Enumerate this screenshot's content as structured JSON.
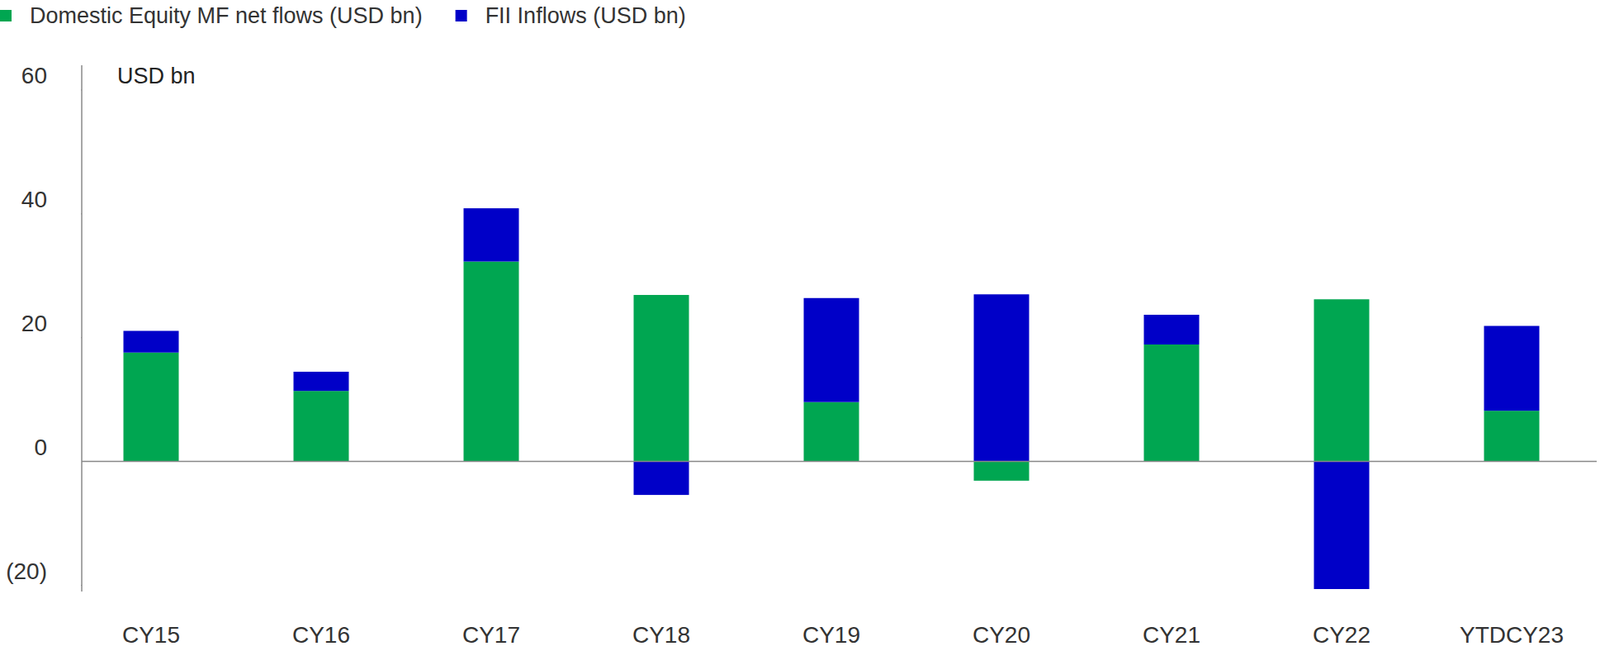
{
  "chart_data": {
    "type": "bar",
    "stacked": true,
    "y_label": "USD bn",
    "categories": [
      "CY15",
      "CY16",
      "CY17",
      "CY18",
      "CY19",
      "CY20",
      "CY21",
      "CY22",
      "YTDCY23"
    ],
    "series": [
      {
        "name": "Domestic Equity MF net flows (USD bn)",
        "color": "#00a651",
        "values": [
          17.6,
          11.4,
          32.3,
          26.9,
          9.6,
          -3.1,
          18.9,
          26.2,
          8.2
        ]
      },
      {
        "name": "FII Inflows (USD bn)",
        "color": "#0000c8",
        "values": [
          3.5,
          3.1,
          8.6,
          -5.4,
          16.8,
          27.0,
          4.8,
          -20.6,
          13.7
        ]
      }
    ],
    "ylim": [
      -21,
      64
    ],
    "yticks": [
      {
        "value": -20,
        "label": "(20)"
      },
      0,
      20,
      40,
      60
    ],
    "legend": "top-left",
    "grid": false
  }
}
